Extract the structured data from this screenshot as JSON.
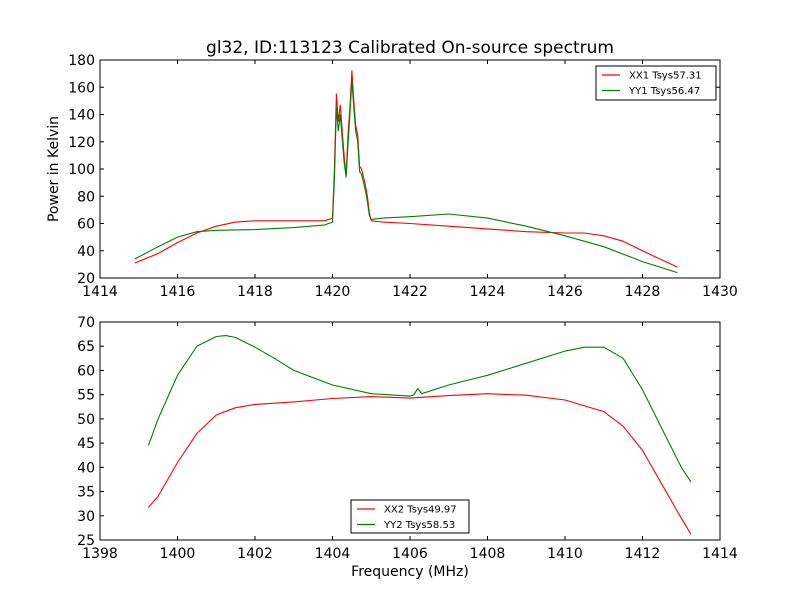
{
  "chart_data": [
    {
      "type": "line",
      "title": "gl32, ID:113123 Calibrated On-source spectrum",
      "xlabel": "",
      "ylabel": "Power in Kelvin",
      "xlim": [
        1414,
        1430
      ],
      "ylim": [
        20,
        180
      ],
      "xticks": [
        1414,
        1416,
        1418,
        1420,
        1422,
        1424,
        1426,
        1428,
        1430
      ],
      "yticks": [
        20,
        40,
        60,
        80,
        100,
        120,
        140,
        160,
        180
      ],
      "legend": "top-right",
      "series": [
        {
          "name": "XX1 Tsys57.31",
          "color": "#ff0000",
          "x": [
            1414.9,
            1415.5,
            1416,
            1416.5,
            1417,
            1417.5,
            1418,
            1419,
            1419.8,
            1420.0,
            1420.05,
            1420.1,
            1420.15,
            1420.2,
            1420.25,
            1420.3,
            1420.35,
            1420.4,
            1420.45,
            1420.5,
            1420.55,
            1420.6,
            1420.65,
            1420.7,
            1420.75,
            1420.8,
            1420.85,
            1420.9,
            1420.95,
            1421.0,
            1421.3,
            1422,
            1423,
            1424,
            1425,
            1426,
            1426.5,
            1427,
            1427.5,
            1428,
            1428.9
          ],
          "y": [
            31,
            38,
            46,
            53,
            58,
            61,
            62,
            62,
            62,
            64,
            100,
            155,
            135,
            147,
            128,
            110,
            95,
            125,
            145,
            172,
            150,
            132,
            125,
            102,
            100,
            94,
            88,
            80,
            68,
            62,
            61,
            60,
            58,
            56,
            54,
            53,
            53,
            51,
            47,
            40,
            28
          ]
        },
        {
          "name": "YY1 Tsys56.47",
          "color": "#008000",
          "x": [
            1414.9,
            1415.5,
            1416,
            1416.5,
            1417,
            1418,
            1419,
            1419.8,
            1420.0,
            1420.05,
            1420.1,
            1420.15,
            1420.2,
            1420.25,
            1420.3,
            1420.35,
            1420.4,
            1420.45,
            1420.5,
            1420.55,
            1420.6,
            1420.65,
            1420.7,
            1420.75,
            1420.8,
            1420.85,
            1420.9,
            1420.95,
            1421.0,
            1421.3,
            1422,
            1423,
            1424,
            1425,
            1426,
            1427,
            1428,
            1428.9
          ],
          "y": [
            34,
            43,
            50,
            54,
            55,
            55.5,
            57,
            59,
            61,
            92,
            145,
            128,
            140,
            122,
            105,
            94,
            118,
            140,
            165,
            145,
            128,
            120,
            98,
            96,
            90,
            84,
            76,
            66,
            63,
            64,
            65,
            67,
            64,
            58,
            51,
            43,
            32,
            24
          ]
        }
      ]
    },
    {
      "type": "line",
      "title": "",
      "xlabel": "Frequency (MHz)",
      "ylabel": "",
      "xlim": [
        1398,
        1414
      ],
      "ylim": [
        25,
        70
      ],
      "xticks": [
        1398,
        1400,
        1402,
        1404,
        1406,
        1408,
        1410,
        1412,
        1414
      ],
      "yticks": [
        25,
        30,
        35,
        40,
        45,
        50,
        55,
        60,
        65,
        70
      ],
      "legend": "lower-center",
      "series": [
        {
          "name": "XX2 Tsys49.97",
          "color": "#ff0000",
          "x": [
            1399.25,
            1399.5,
            1400,
            1400.5,
            1401,
            1401.5,
            1402,
            1403,
            1404,
            1405,
            1406,
            1407,
            1408,
            1409,
            1410,
            1411,
            1411.5,
            1412,
            1412.5,
            1413,
            1413.25
          ],
          "y": [
            31.7,
            34,
            41,
            47,
            50.8,
            52.3,
            53,
            53.5,
            54.2,
            54.6,
            54.3,
            54.8,
            55.2,
            54.9,
            53.9,
            51.5,
            48.5,
            43.5,
            36.5,
            29.5,
            26.2
          ]
        },
        {
          "name": "YY2 Tsys58.53",
          "color": "#008000",
          "x": [
            1399.25,
            1399.5,
            1400,
            1400.5,
            1401,
            1401.25,
            1401.5,
            1402,
            1402.5,
            1403,
            1403.5,
            1404,
            1405,
            1406,
            1406.1,
            1406.2,
            1406.3,
            1407,
            1407.5,
            1408,
            1409,
            1410,
            1410.5,
            1411,
            1411.5,
            1412,
            1412.5,
            1413,
            1413.25
          ],
          "y": [
            44.5,
            50,
            59,
            65,
            67,
            67.2,
            66.8,
            64.8,
            62.5,
            60,
            58.5,
            57,
            55.2,
            54.7,
            55,
            56.3,
            55.2,
            57,
            58,
            59,
            61.5,
            64,
            64.8,
            64.8,
            62.5,
            56,
            48,
            40,
            37
          ]
        }
      ]
    }
  ]
}
